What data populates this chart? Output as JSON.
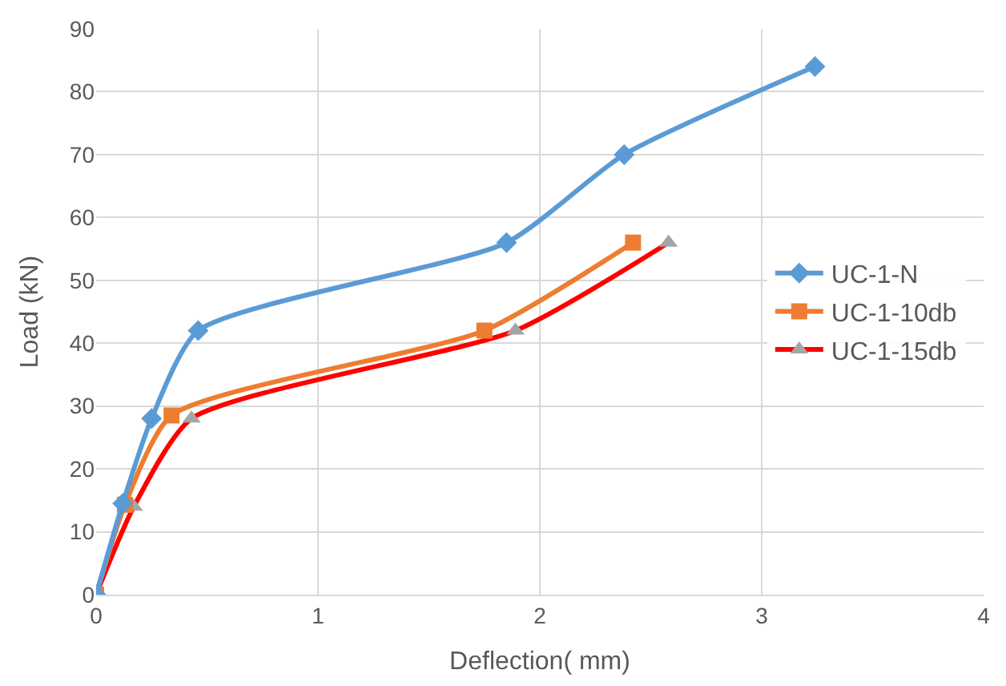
{
  "chart_data": {
    "type": "line",
    "xlabel": "Deflection( mm)",
    "ylabel": "Load (kN)",
    "xlim": [
      0,
      4
    ],
    "xticks": [
      0,
      1,
      2,
      3,
      4
    ],
    "ylim": [
      0,
      90
    ],
    "yticks": [
      0,
      10,
      20,
      30,
      40,
      50,
      60,
      70,
      80,
      90
    ],
    "grid": true,
    "legend": "right",
    "series": [
      {
        "name": "UC-1-N",
        "color": "#5b9bd5",
        "marker": "diamond",
        "x": [
          0,
          0.12,
          0.25,
          0.46,
          1.85,
          2.38,
          3.24
        ],
        "values": [
          0,
          14.5,
          28,
          42,
          56,
          70,
          84
        ]
      },
      {
        "name": "UC-1-10db",
        "color": "#ed7d31",
        "marker": "square",
        "x": [
          0,
          0.13,
          0.34,
          1.75,
          2.42
        ],
        "values": [
          0,
          14.3,
          28.5,
          42,
          56
        ]
      },
      {
        "name": "UC-1-15db",
        "color": "#ff0000",
        "marker": "triangle",
        "colors": [
          "#a5a5a5",
          "#a5a5a5",
          "#a5a5a5",
          "#a5a5a5",
          "#a5a5a5"
        ],
        "x": [
          0,
          0.17,
          0.43,
          1.89,
          2.58
        ],
        "values": [
          0,
          14,
          28,
          42,
          56
        ]
      }
    ]
  }
}
